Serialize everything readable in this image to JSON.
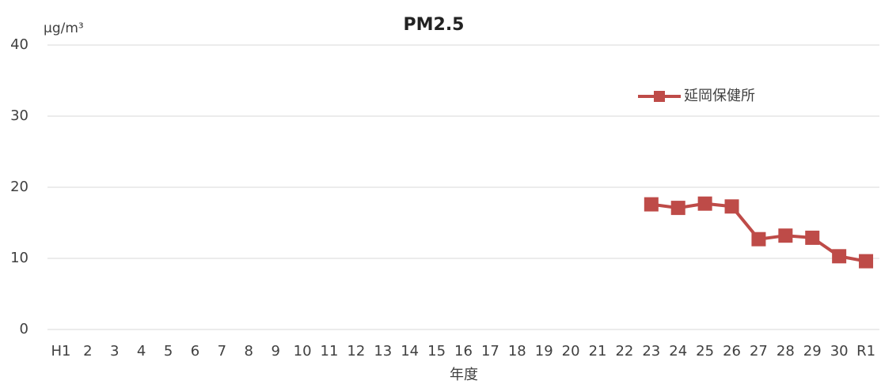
{
  "chart_data": {
    "type": "line",
    "title": "PM2.5",
    "ylabel": "μg/m³",
    "xlabel": "年度",
    "categories": [
      "H1",
      "2",
      "3",
      "4",
      "5",
      "6",
      "7",
      "8",
      "9",
      "10",
      "11",
      "12",
      "13",
      "14",
      "15",
      "16",
      "17",
      "18",
      "19",
      "20",
      "21",
      "22",
      "23",
      "24",
      "25",
      "26",
      "27",
      "28",
      "29",
      "30",
      "R1"
    ],
    "series": [
      {
        "name": "延岡保健所",
        "color": "#be4b48",
        "values": [
          null,
          null,
          null,
          null,
          null,
          null,
          null,
          null,
          null,
          null,
          null,
          null,
          null,
          null,
          null,
          null,
          null,
          null,
          null,
          null,
          null,
          null,
          17.6,
          17.1,
          17.7,
          17.3,
          12.7,
          13.2,
          12.9,
          10.3,
          9.6
        ]
      }
    ],
    "ylim": [
      0,
      40
    ],
    "yticks": [
      0,
      10,
      20,
      30,
      40
    ],
    "grid": true,
    "legend": "top-right"
  }
}
